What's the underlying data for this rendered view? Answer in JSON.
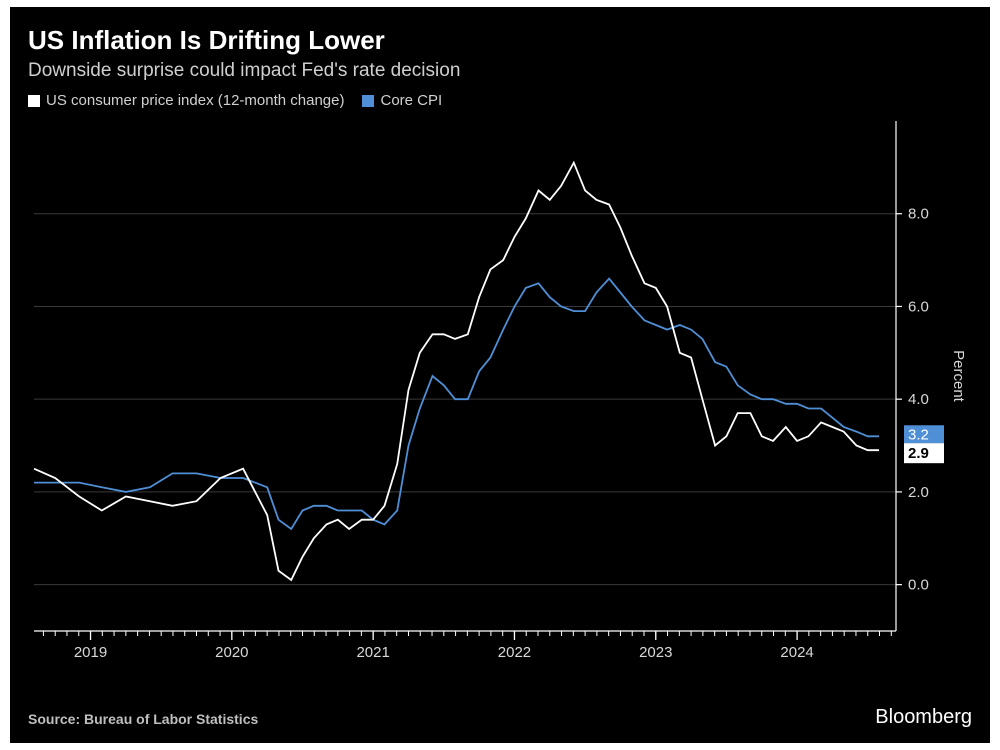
{
  "title": "US Inflation Is Drifting Lower",
  "subtitle": "Downside surprise could impact Fed's rate decision",
  "legend": {
    "series1": {
      "label": "US consumer price index (12-month change)",
      "color": "#ffffff"
    },
    "series2": {
      "label": "Core CPI",
      "color": "#4f8fd6"
    }
  },
  "chart": {
    "type": "line",
    "background_color": "#000000",
    "grid_color": "#3a3a3a",
    "axis_color": "#ffffff",
    "tick_color": "#ffffff",
    "axis_label_color": "#d8d8d8",
    "axis_label_fontsize": 15,
    "y_axis_title": "Percent",
    "y_axis_title_fontsize": 15,
    "line_width": 1.8,
    "ylim": [
      -1,
      10
    ],
    "ytick_values": [
      0.0,
      2.0,
      4.0,
      6.0,
      8.0
    ],
    "ytick_labels": [
      "0.0",
      "2.0",
      "4.0",
      "6.0",
      "8.0"
    ],
    "x_tick_years": [
      2019,
      2020,
      2021,
      2022,
      2023,
      2024
    ],
    "x_start": 2018.6,
    "x_end": 2024.7,
    "end_label": {
      "cpi": "2.9",
      "core": "3.2",
      "core_color": "#4f8fd6",
      "cpi_bg": "#ffffff",
      "cpi_text": "#000000",
      "fontsize": 15
    },
    "series": {
      "cpi": {
        "color": "#ffffff",
        "x": [
          2018.6,
          2018.75,
          2018.92,
          2019.08,
          2019.25,
          2019.42,
          2019.58,
          2019.75,
          2019.92,
          2020.08,
          2020.25,
          2020.33,
          2020.42,
          2020.5,
          2020.58,
          2020.67,
          2020.75,
          2020.83,
          2020.92,
          2021.0,
          2021.08,
          2021.17,
          2021.25,
          2021.33,
          2021.42,
          2021.5,
          2021.58,
          2021.67,
          2021.75,
          2021.83,
          2021.92,
          2022.0,
          2022.08,
          2022.17,
          2022.25,
          2022.33,
          2022.42,
          2022.5,
          2022.58,
          2022.67,
          2022.75,
          2022.83,
          2022.92,
          2023.0,
          2023.08,
          2023.17,
          2023.25,
          2023.33,
          2023.42,
          2023.5,
          2023.58,
          2023.67,
          2023.75,
          2023.83,
          2023.92,
          2024.0,
          2024.08,
          2024.17,
          2024.25,
          2024.33,
          2024.42,
          2024.5,
          2024.58
        ],
        "y": [
          2.5,
          2.3,
          1.9,
          1.6,
          1.9,
          1.8,
          1.7,
          1.8,
          2.3,
          2.5,
          1.5,
          0.3,
          0.1,
          0.6,
          1.0,
          1.3,
          1.4,
          1.2,
          1.4,
          1.4,
          1.7,
          2.6,
          4.2,
          5.0,
          5.4,
          5.4,
          5.3,
          5.4,
          6.2,
          6.8,
          7.0,
          7.5,
          7.9,
          8.5,
          8.3,
          8.6,
          9.1,
          8.5,
          8.3,
          8.2,
          7.7,
          7.1,
          6.5,
          6.4,
          6.0,
          5.0,
          4.9,
          4.0,
          3.0,
          3.2,
          3.7,
          3.7,
          3.2,
          3.1,
          3.4,
          3.1,
          3.2,
          3.5,
          3.4,
          3.3,
          3.0,
          2.9,
          2.9
        ]
      },
      "core": {
        "color": "#4f8fd6",
        "x": [
          2018.6,
          2018.75,
          2018.92,
          2019.08,
          2019.25,
          2019.42,
          2019.58,
          2019.75,
          2019.92,
          2020.08,
          2020.25,
          2020.33,
          2020.42,
          2020.5,
          2020.58,
          2020.67,
          2020.75,
          2020.83,
          2020.92,
          2021.0,
          2021.08,
          2021.17,
          2021.25,
          2021.33,
          2021.42,
          2021.5,
          2021.58,
          2021.67,
          2021.75,
          2021.83,
          2021.92,
          2022.0,
          2022.08,
          2022.17,
          2022.25,
          2022.33,
          2022.42,
          2022.5,
          2022.58,
          2022.67,
          2022.75,
          2022.83,
          2022.92,
          2023.0,
          2023.08,
          2023.17,
          2023.25,
          2023.33,
          2023.42,
          2023.5,
          2023.58,
          2023.67,
          2023.75,
          2023.83,
          2023.92,
          2024.0,
          2024.08,
          2024.17,
          2024.25,
          2024.33,
          2024.42,
          2024.5,
          2024.58
        ],
        "y": [
          2.2,
          2.2,
          2.2,
          2.1,
          2.0,
          2.1,
          2.4,
          2.4,
          2.3,
          2.3,
          2.1,
          1.4,
          1.2,
          1.6,
          1.7,
          1.7,
          1.6,
          1.6,
          1.6,
          1.4,
          1.3,
          1.6,
          3.0,
          3.8,
          4.5,
          4.3,
          4.0,
          4.0,
          4.6,
          4.9,
          5.5,
          6.0,
          6.4,
          6.5,
          6.2,
          6.0,
          5.9,
          5.9,
          6.3,
          6.6,
          6.3,
          6.0,
          5.7,
          5.6,
          5.5,
          5.6,
          5.5,
          5.3,
          4.8,
          4.7,
          4.3,
          4.1,
          4.0,
          4.0,
          3.9,
          3.9,
          3.8,
          3.8,
          3.6,
          3.4,
          3.3,
          3.2,
          3.2
        ]
      }
    }
  },
  "source_line": "Source: Bureau of Labor Statistics",
  "brand": "Bloomberg"
}
